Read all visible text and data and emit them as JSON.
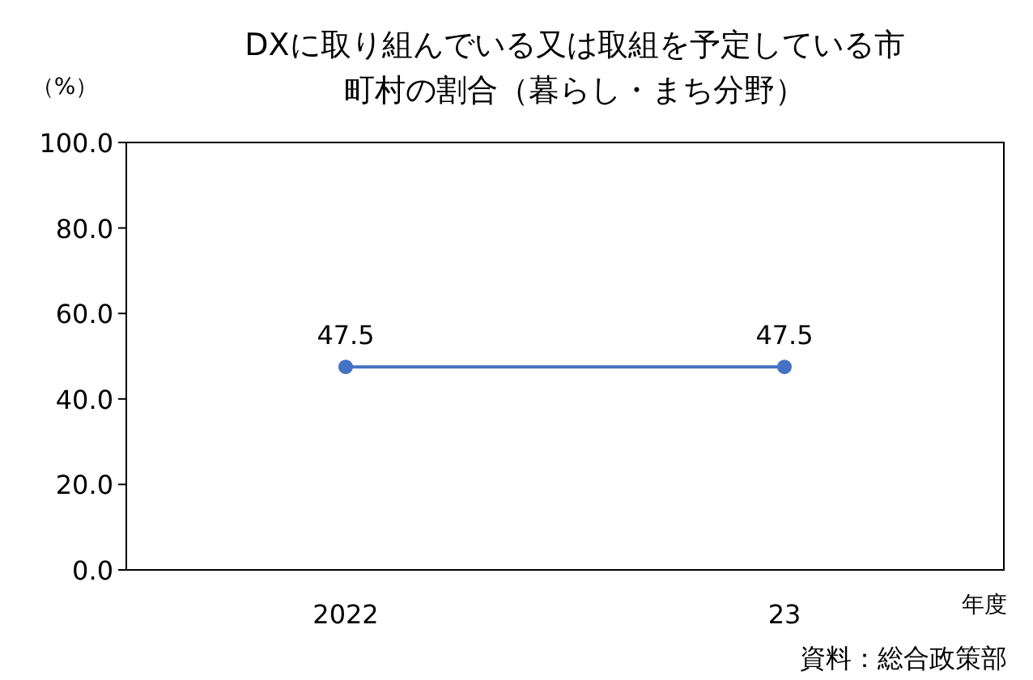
{
  "chart_data": {
    "type": "line",
    "title": "DXに取り組んでいる又は取組を予定している市町村の割合（暮らし・まち分野）",
    "ylabel": "（%）",
    "xlabel": "年度",
    "annotations": [
      "資料：総合政策部"
    ],
    "categories": [
      "2022",
      "23"
    ],
    "series": [
      {
        "color": "#4472c4",
        "values": [
          47.5,
          47.5
        ]
      }
    ],
    "ylim": [
      0,
      100
    ],
    "yticks": [
      {
        "value": 0,
        "label": "0.0"
      },
      {
        "value": 20,
        "label": "20.0"
      },
      {
        "value": 40,
        "label": "40.0"
      },
      {
        "value": 60,
        "label": "60.0"
      },
      {
        "value": 80,
        "label": "80.0"
      },
      {
        "value": 100,
        "label": "100.0"
      }
    ],
    "grid": false,
    "marker": "circle",
    "line_style": "solid",
    "data_labels": true
  }
}
